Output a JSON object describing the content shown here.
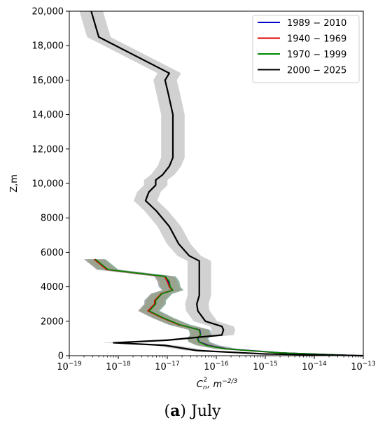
{
  "caption": {
    "paren_open": "(",
    "letter": "a",
    "paren_close": ")",
    "text": " July"
  },
  "chart_data": {
    "type": "line",
    "title": "",
    "xlabel_main": "C",
    "xlabel_sub": "n",
    "xlabel_sup": "2",
    "xlabel_rest": ", m",
    "xlabel_unit_sup": "−2/3",
    "ylabel": "Z,m",
    "x_scale": "log",
    "xlim": [
      1e-19,
      1e-13
    ],
    "ylim": [
      0,
      20000
    ],
    "x_ticks": [
      {
        "value": 1e-19,
        "base": "10",
        "exp": "−19"
      },
      {
        "value": 1e-18,
        "base": "10",
        "exp": "−18"
      },
      {
        "value": 1e-17,
        "base": "10",
        "exp": "−17"
      },
      {
        "value": 1e-16,
        "base": "10",
        "exp": "−16"
      },
      {
        "value": 1e-15,
        "base": "10",
        "exp": "−15"
      },
      {
        "value": 1e-14,
        "base": "10",
        "exp": "−14"
      },
      {
        "value": 1e-13,
        "base": "10",
        "exp": "−13"
      }
    ],
    "y_ticks": [
      {
        "value": 0,
        "label": "0"
      },
      {
        "value": 2000,
        "label": "2000"
      },
      {
        "value": 4000,
        "label": "4000"
      },
      {
        "value": 6000,
        "label": "6000"
      },
      {
        "value": 8000,
        "label": "8000"
      },
      {
        "value": 10000,
        "label": "10,000"
      },
      {
        "value": 12000,
        "label": "12,000"
      },
      {
        "value": 14000,
        "label": "14,000"
      },
      {
        "value": 16000,
        "label": "16,000"
      },
      {
        "value": 18000,
        "label": "18,000"
      },
      {
        "value": 20000,
        "label": "20,000"
      }
    ],
    "grid": false,
    "legend_position": "top-right",
    "series": [
      {
        "name": "1989 − 2010",
        "color": "#0000cc",
        "band_color": "#4a7fa8",
        "x": [
          9.5e-14,
          2e-15,
          1.6e-16,
          7e-17,
          4.5e-17,
          4.2e-17,
          4.8e-17,
          4.6e-17,
          1.75e-17,
          8e-18,
          4.2e-18,
          5.6e-18,
          5.6e-18,
          7.6e-18,
          1.3e-17,
          1.1e-17,
          1.05e-17,
          9e-18,
          6e-19,
          3.3e-19
        ],
        "y": [
          0,
          170,
          400,
          600,
          800,
          1000,
          1200,
          1500,
          1800,
          2200,
          2600,
          3000,
          3200,
          3600,
          3800,
          4000,
          4300,
          4600,
          5000,
          5600
        ]
      },
      {
        "name": "1940 − 1969",
        "color": "#dd0000",
        "band_color": "#d9827f",
        "x": [
          8e-14,
          1.8e-15,
          1.5e-16,
          6.5e-17,
          4.4e-17,
          4.1e-17,
          4.7e-17,
          4.5e-17,
          1.7e-17,
          7.8e-18,
          4e-18,
          5.5e-18,
          5.5e-18,
          7.5e-18,
          1.25e-17,
          1.1e-17,
          1e-17,
          8.8e-18,
          5.8e-19,
          3.2e-19
        ],
        "y": [
          0,
          170,
          400,
          600,
          800,
          1000,
          1200,
          1500,
          1800,
          2200,
          2600,
          3000,
          3200,
          3600,
          3800,
          4000,
          4300,
          4600,
          5000,
          5600
        ]
      },
      {
        "name": "1970 − 1999",
        "color": "#008800",
        "band_color": "#6aa06a",
        "x": [
          8.5e-14,
          1.9e-15,
          1.45e-16,
          6.2e-17,
          4.4e-17,
          4.1e-17,
          4.8e-17,
          4.4e-17,
          1.8e-17,
          8.2e-18,
          4.3e-18,
          5.8e-18,
          5.8e-18,
          7.8e-18,
          1.3e-17,
          1.15e-17,
          1.1e-17,
          9.2e-18,
          6.2e-19,
          3.4e-19
        ],
        "y": [
          0,
          170,
          400,
          600,
          800,
          1000,
          1200,
          1500,
          1800,
          2200,
          2600,
          3000,
          3200,
          3600,
          3800,
          4000,
          4300,
          4600,
          5000,
          5600
        ]
      },
      {
        "name": "2000 − 2025",
        "color": "#000000",
        "band_color": "#9a9a9a",
        "x": [
          1e-13,
          1e-15,
          4e-17,
          9e-18,
          8e-19,
          1e-17,
          1.3e-16,
          1.4e-16,
          1.3e-16,
          6e-17,
          4.2e-17,
          4e-17,
          4.5e-17,
          4.5e-17,
          2.8e-17,
          1.7e-17,
          1.1e-17,
          6e-18,
          3.6e-18,
          4.2e-18,
          5.8e-18,
          5.8e-18,
          8e-18,
          1.1e-17,
          1.3e-17,
          1.3e-17,
          1.05e-17,
          9e-18,
          1.1e-17,
          4e-19,
          2.8e-19
        ],
        "y": [
          0,
          100,
          300,
          600,
          750,
          900,
          1200,
          1500,
          1700,
          2000,
          2600,
          3000,
          3500,
          5500,
          5800,
          6500,
          7500,
          8400,
          9000,
          9500,
          9900,
          10200,
          10500,
          11000,
          11500,
          14000,
          15200,
          16000,
          16400,
          18500,
          20000
        ]
      }
    ]
  }
}
